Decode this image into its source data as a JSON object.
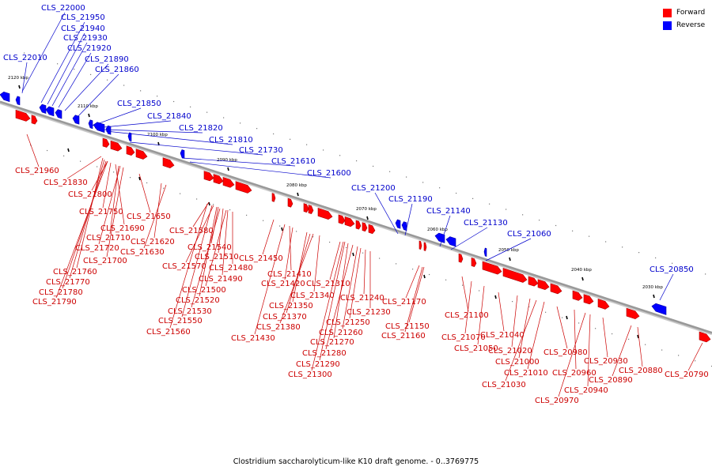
{
  "caption": "Clostridium saccharolyticum-like K10 draft genome. - 0..3769775",
  "legend": [
    {
      "label": "Forward",
      "color": "#ff0000"
    },
    {
      "label": "Reverse",
      "color": "#0000ff"
    }
  ],
  "colors": {
    "forward": "#ff0000",
    "reverse": "#0000ff",
    "forward_label": "#cc0000",
    "reverse_label": "#0000cc",
    "backbone": "#999999"
  },
  "scale_ticks": [
    "2120 kbp",
    "2110 kbp",
    "2100 kbp",
    "2090 kbp",
    "2080 kbp",
    "2070 kbp",
    "2060 kbp",
    "2050 kbp",
    "2040 kbp",
    "2030 kbp"
  ],
  "reverse_genes": [
    "CLS_22000",
    "CLS_21950",
    "CLS_21940",
    "CLS_21930",
    "CLS_21920",
    "CLS_22010",
    "CLS_21890",
    "CLS_21860",
    "CLS_21850",
    "CLS_21840",
    "CLS_21820",
    "CLS_21810",
    "CLS_21730",
    "CLS_21610",
    "CLS_21600",
    "CLS_21200",
    "CLS_21190",
    "CLS_21140",
    "CLS_21130",
    "CLS_21060",
    "CLS_20850"
  ],
  "forward_genes": [
    "CLS_21960",
    "CLS_21830",
    "CLS_21800",
    "CLS_21750",
    "CLS_21690",
    "CLS_21710",
    "CLS_21720",
    "CLS_21700",
    "CLS_21760",
    "CLS_21770",
    "CLS_21780",
    "CLS_21790",
    "CLS_21650",
    "CLS_21620",
    "CLS_21630",
    "CLS_21580",
    "CLS_21540",
    "CLS_21510",
    "CLS_21570",
    "CLS_21480",
    "CLS_21490",
    "CLS_21500",
    "CLS_21520",
    "CLS_21530",
    "CLS_21550",
    "CLS_21560",
    "CLS_21450",
    "CLS_21410",
    "CLS_21420",
    "CLS_21340",
    "CLS_21350",
    "CLS_21370",
    "CLS_21380",
    "CLS_21430",
    "CLS_21310",
    "CLS_21240",
    "CLS_21230",
    "CLS_21250",
    "CLS_21260",
    "CLS_21270",
    "CLS_21280",
    "CLS_21290",
    "CLS_21300",
    "CLS_21170",
    "CLS_21150",
    "CLS_21160",
    "CLS_21100",
    "CLS_21070",
    "CLS_21050",
    "CLS_21040",
    "CLS_21020",
    "CLS_21000",
    "CLS_21010",
    "CLS_21030",
    "CLS_20980",
    "CLS_20960",
    "CLS_20970",
    "CLS_20940",
    "CLS_20930",
    "CLS_20890",
    "CLS_20880",
    "CLS_20790"
  ]
}
